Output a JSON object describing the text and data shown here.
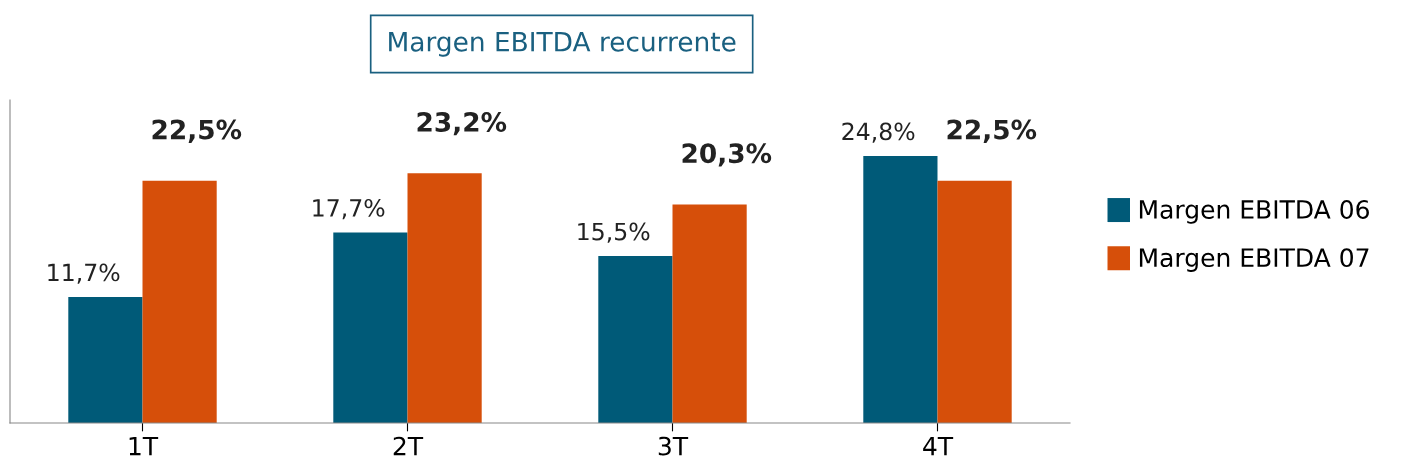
{
  "chart_data": {
    "type": "bar",
    "title": "Margen EBITDA recurrente",
    "categories": [
      "1T",
      "2T",
      "3T",
      "4T"
    ],
    "series": [
      {
        "name": "Margen EBITDA 06",
        "color": "#005a78",
        "values": [
          11.7,
          17.7,
          15.5,
          24.8
        ],
        "value_labels": [
          "11,7%",
          "17,7%",
          "15,5%",
          "24,8%"
        ]
      },
      {
        "name": "Margen EBITDA 07",
        "color": "#d64f0a",
        "values": [
          22.5,
          23.2,
          20.3,
          22.5
        ],
        "value_labels": [
          "22,5%",
          "23,2%",
          "20,3%",
          "22,5%"
        ]
      }
    ],
    "ylim": [
      0,
      30
    ],
    "grid": false,
    "legend": "right"
  }
}
